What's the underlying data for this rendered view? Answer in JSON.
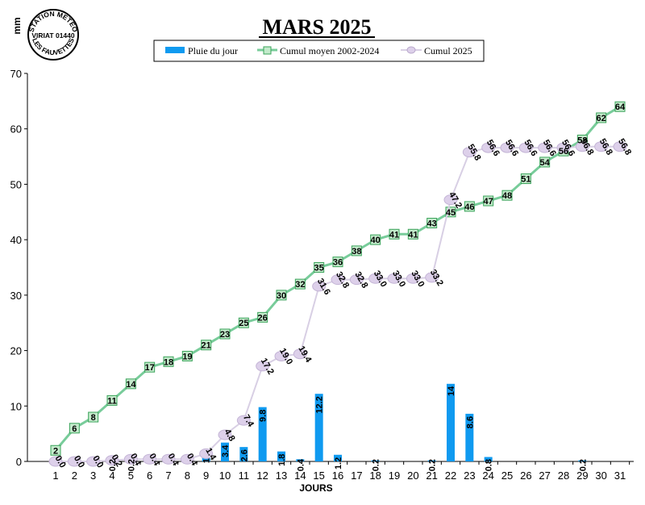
{
  "station_stamp": {
    "top": "STATION METEO",
    "middle": "VIRIAT 01440",
    "bottom": "LES FAUVETTES"
  },
  "legend": {
    "rain": "Pluie du jour",
    "avg": "Cumul moyen 2002-2024",
    "cum": "Cumul 2025"
  },
  "colors": {
    "rain": "#0f9af0",
    "avg_line": "#78cc9a",
    "avg_marker_fill": "#c3eacb",
    "avg_marker_stroke": "#3aa35a",
    "cum_line": "#d8cfe4",
    "cum_marker_fill": "#ddd0ea"
  },
  "chart_data": {
    "type": "bar+line",
    "title": "MARS 2025",
    "xlabel": "JOURS",
    "ylabel": "mm",
    "ylim": [
      0,
      70
    ],
    "yticks": [
      0,
      10,
      20,
      30,
      40,
      50,
      60,
      70
    ],
    "categories": [
      "1",
      "2",
      "3",
      "4",
      "5",
      "6",
      "7",
      "8",
      "9",
      "10",
      "11",
      "12",
      "13",
      "14",
      "15",
      "16",
      "17",
      "18",
      "19",
      "20",
      "21",
      "22",
      "23",
      "24",
      "25",
      "26",
      "27",
      "28",
      "29",
      "30",
      "31"
    ],
    "series": [
      {
        "name": "Pluie du jour",
        "kind": "bar",
        "values": [
          0,
          0,
          0,
          0.2,
          0.2,
          0,
          0,
          0,
          1,
          3.4,
          2.6,
          9.8,
          1.8,
          0.4,
          12.2,
          1.2,
          0,
          0.2,
          0,
          0,
          0.2,
          14,
          8.6,
          0.8,
          0,
          0,
          0,
          0,
          0.2,
          0,
          0
        ],
        "labels": [
          "",
          "",
          "",
          "0.2",
          "0.2",
          "",
          "",
          "",
          "1",
          "3.4",
          "2.6",
          "9.8",
          "1.8",
          "0.4",
          "12.2",
          "1.2",
          "",
          "0.2",
          "",
          "",
          "0.2",
          "14",
          "8.6",
          "0.8",
          "",
          "",
          "",
          "",
          "0.2",
          "",
          ""
        ]
      },
      {
        "name": "Cumul moyen 2002-2024",
        "kind": "line",
        "values": [
          2,
          6,
          8,
          11,
          14,
          17,
          18,
          19,
          21,
          23,
          25,
          26,
          30,
          32,
          35,
          36,
          38,
          40,
          41,
          41,
          43,
          45,
          46,
          47,
          48,
          51,
          54,
          56,
          58,
          62,
          64
        ],
        "labels": [
          "2",
          "6",
          "8",
          "11",
          "14",
          "17",
          "18",
          "19",
          "21",
          "23",
          "25",
          "26",
          "30",
          "32",
          "35",
          "36",
          "38",
          "40",
          "41",
          "41",
          "43",
          "45",
          "46",
          "47",
          "48",
          "51",
          "54",
          "56",
          "58",
          "62",
          "64"
        ]
      },
      {
        "name": "Cumul 2025",
        "kind": "line",
        "values": [
          0,
          0,
          0,
          0.2,
          0.4,
          0.4,
          0.4,
          0.4,
          1.4,
          4.8,
          7.4,
          17.2,
          19.0,
          19.4,
          31.6,
          32.8,
          32.8,
          33.0,
          33.0,
          33.0,
          33.2,
          47.2,
          55.8,
          56.6,
          56.6,
          56.6,
          56.6,
          56.6,
          56.8,
          56.8,
          56.8
        ],
        "labels": [
          "0.0",
          "0.0",
          "0.0",
          "0.2",
          "0.4",
          "0.4",
          "0.4",
          "0.4",
          "1.4",
          "4.8",
          "7.4",
          "17.2",
          "19.0",
          "19.4",
          "31.6",
          "32.8",
          "32.8",
          "33.0",
          "33.0",
          "33.0",
          "33.2",
          "47.2",
          "55.8",
          "56.6",
          "56.6",
          "56.6",
          "56.6",
          "56.6",
          "56.8",
          "56.8",
          "56.8"
        ]
      }
    ]
  }
}
